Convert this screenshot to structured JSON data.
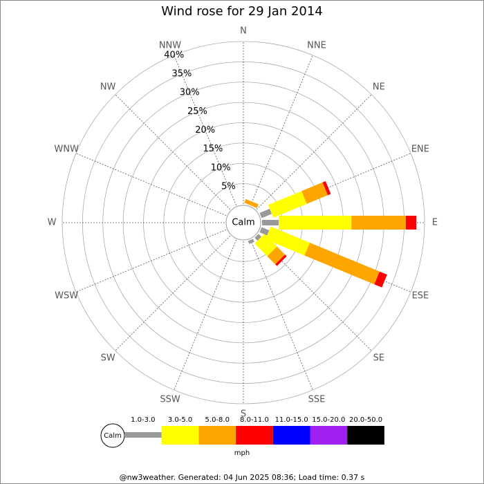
{
  "chart_data": {
    "type": "wind_rose",
    "title": "Wind rose for 29 Jan 2014",
    "categories": [
      "N",
      "NNE",
      "NE",
      "ENE",
      "E",
      "ESE",
      "SE",
      "SSE",
      "S",
      "SSW",
      "SW",
      "WSW",
      "W",
      "WNW",
      "NW",
      "NNW"
    ],
    "calm_label": "Calm",
    "series": [
      {
        "name": "1.0-3.0",
        "color": "#999999",
        "values": [
          0,
          0,
          0,
          2.7,
          4.1,
          2,
          1,
          0.8,
          0,
          0,
          0,
          0,
          0,
          0,
          0,
          0
        ]
      },
      {
        "name": "3.0-5.0",
        "color": "#ffff00",
        "values": [
          0,
          0,
          0,
          8.9,
          17.9,
          10.4,
          4.4,
          0,
          0,
          0,
          0,
          0,
          0,
          0,
          0,
          0
        ]
      },
      {
        "name": "5.0-8.0",
        "color": "#ffa500",
        "values": [
          0,
          1,
          0,
          5.6,
          13.4,
          18.6,
          2.8,
          0,
          0,
          0,
          0,
          0,
          0,
          0,
          0,
          0
        ]
      },
      {
        "name": "8.0-11.0",
        "color": "#ff0000",
        "values": [
          0,
          0,
          0,
          0.8,
          2.6,
          2,
          0.6,
          0,
          0,
          0,
          0,
          0,
          0,
          0,
          0,
          0
        ]
      },
      {
        "name": "11.0-15.0",
        "color": "#0000ff",
        "values": [
          0,
          0,
          0,
          0,
          0,
          0,
          0,
          0,
          0,
          0,
          0,
          0,
          0,
          0,
          0,
          0
        ]
      },
      {
        "name": "15.0-20.0",
        "color": "#a020f0",
        "values": [
          0,
          0,
          0,
          0,
          0,
          0,
          0,
          0,
          0,
          0,
          0,
          0,
          0,
          0,
          0,
          0
        ]
      },
      {
        "name": "20.0-50.0",
        "color": "#000000",
        "values": [
          0,
          0,
          0,
          0,
          0,
          0,
          0,
          0,
          0,
          0,
          0,
          0,
          0,
          0,
          0,
          0
        ]
      }
    ],
    "rlim": [
      0,
      40
    ],
    "rticks": [
      {
        "value": 5,
        "label": "5%"
      },
      {
        "value": 10,
        "label": "10%"
      },
      {
        "value": 15,
        "label": "15%"
      },
      {
        "value": 20,
        "label": "20%"
      },
      {
        "value": 25,
        "label": "25%"
      },
      {
        "value": 30,
        "label": "30%"
      },
      {
        "value": 35,
        "label": "35%"
      },
      {
        "value": 40,
        "label": "40%"
      }
    ],
    "legend_unit": "mph",
    "footer": "@nw3weather. Generated: 04 Jun 2025 08:36; Load time: 0.37 s"
  }
}
